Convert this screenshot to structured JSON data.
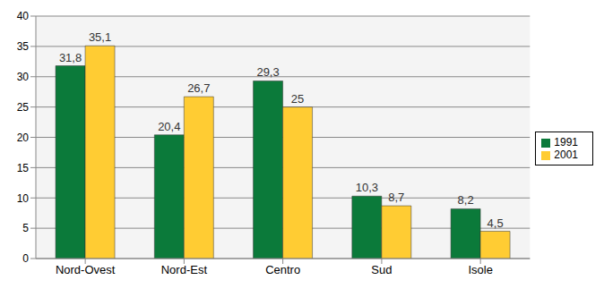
{
  "chart_data": {
    "type": "bar",
    "categories": [
      "Nord-Ovest",
      "Nord-Est",
      "Centro",
      "Sud",
      "Isole"
    ],
    "series": [
      {
        "name": "1991",
        "color": "#0b7a3a",
        "values": [
          31.8,
          20.4,
          29.3,
          10.3,
          8.2
        ],
        "value_labels": [
          "31,8",
          "20,4",
          "29,3",
          "10,3",
          "8,2"
        ]
      },
      {
        "name": "2001",
        "color": "#ffcc33",
        "values": [
          35.1,
          26.7,
          25,
          8.7,
          4.5
        ],
        "value_labels": [
          "35,1",
          "26,7",
          "25",
          "8,7",
          "4,5"
        ]
      }
    ],
    "ylim": [
      0,
      40
    ],
    "yticks": [
      0,
      5,
      10,
      15,
      20,
      25,
      30,
      35,
      40
    ],
    "grid": true,
    "legend": "right",
    "data_labels": true
  }
}
